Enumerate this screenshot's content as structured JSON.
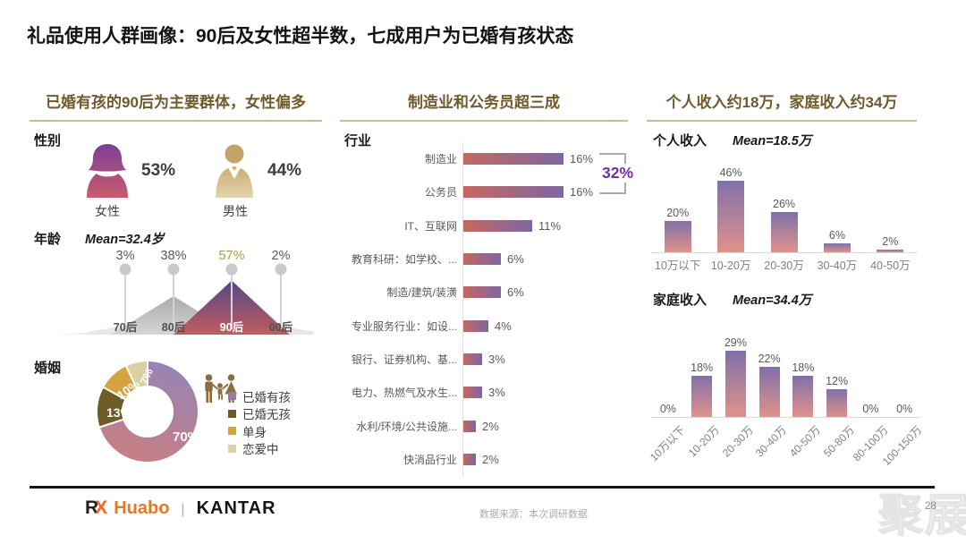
{
  "title": "礼品使用人群画像：90后及女性超半数，七成用户为已婚有孩状态",
  "panels": {
    "left": {
      "header": "已婚有孩的90后为主要群体，女性偏多"
    },
    "middle": {
      "header": "制造业和公务员超三成"
    },
    "right": {
      "header": "个人收入约18万，家庭收入约34万"
    }
  },
  "chart_data": [
    {
      "type": "pictograph",
      "title": "性别",
      "categories": [
        "女性",
        "男性"
      ],
      "values": [
        53,
        44
      ],
      "values_text": [
        "53%",
        "44%"
      ],
      "unit": "%",
      "icon_colors": [
        "purple-red-gradient",
        "tan"
      ]
    },
    {
      "type": "area",
      "title": "年龄",
      "subtitle": "Mean=32.4岁",
      "categories": [
        "70后",
        "80后",
        "90后",
        "00后"
      ],
      "values": [
        3,
        38,
        57,
        2
      ],
      "unit": "%",
      "highlight_category": "90后",
      "highlight_value_color": "#a89a4e"
    },
    {
      "type": "pie",
      "title": "婚姻",
      "labels": [
        "已婚有孩",
        "已婚无孩",
        "单身",
        "恋爱中"
      ],
      "values": [
        70,
        13,
        10,
        7
      ],
      "unit": "%",
      "slice_colors": [
        "purple-rose-gradient",
        "#6d5c28",
        "#d2a33e",
        "#dbd0a2"
      ],
      "legend_colors": [
        "#9b7aa0",
        "#6d5c28",
        "#d2a33e",
        "#dbd0a2"
      ],
      "legend_position": "right"
    },
    {
      "type": "bar",
      "orientation": "horizontal",
      "title": "行业",
      "categories": [
        "制造业",
        "公务员",
        "IT、互联网",
        "教育科研：如学校、...",
        "制造/建筑/装潢",
        "专业服务行业：如设...",
        "银行、证券机构、基...",
        "电力、热燃气及水生...",
        "水利/环境/公共设施...",
        "快消品行业"
      ],
      "values": [
        16,
        16,
        11,
        6,
        6,
        4,
        3,
        3,
        2,
        2
      ],
      "unit": "%",
      "annotation": "32%"
    },
    {
      "type": "bar",
      "title": "个人收入",
      "subtitle": "Mean=18.5万",
      "categories": [
        "10万以下",
        "10-20万",
        "20-30万",
        "30-40万",
        "40-50万"
      ],
      "values": [
        20,
        46,
        26,
        6,
        2
      ],
      "unit": "%"
    },
    {
      "type": "bar",
      "title": "家庭收入",
      "subtitle": "Mean=34.4万",
      "categories": [
        "10万以下",
        "10-20万",
        "20-30万",
        "30-40万",
        "40-50万",
        "50-80万",
        "80-100万",
        "100-150万"
      ],
      "values": [
        0,
        18,
        29,
        22,
        18,
        12,
        0,
        0
      ],
      "unit": "%"
    }
  ],
  "footer": {
    "logo_rx_r": "R",
    "logo_rx_x": "X",
    "logo_huabo": "Huabo",
    "logo_separator": "|",
    "logo_kantar": "KANTAR",
    "source": "数据来源：本次调研数据",
    "page_number": "28",
    "watermark": "聚展"
  },
  "colors": {
    "header_brown": "#6e5a2b",
    "underline_tan": "#cbbc8e",
    "accent_purple": "#7030a0",
    "highlight_gold": "#a89a4e",
    "hbar_gradient": [
      "#c4685f",
      "#7e66a4"
    ],
    "vbar_gradient": [
      "#8070aa",
      "#e0928a"
    ],
    "peak_gradient": [
      "#54468a",
      "#c25d5e"
    ],
    "logo_orange": "#e87722",
    "rx_x_orange": "#f26522"
  }
}
